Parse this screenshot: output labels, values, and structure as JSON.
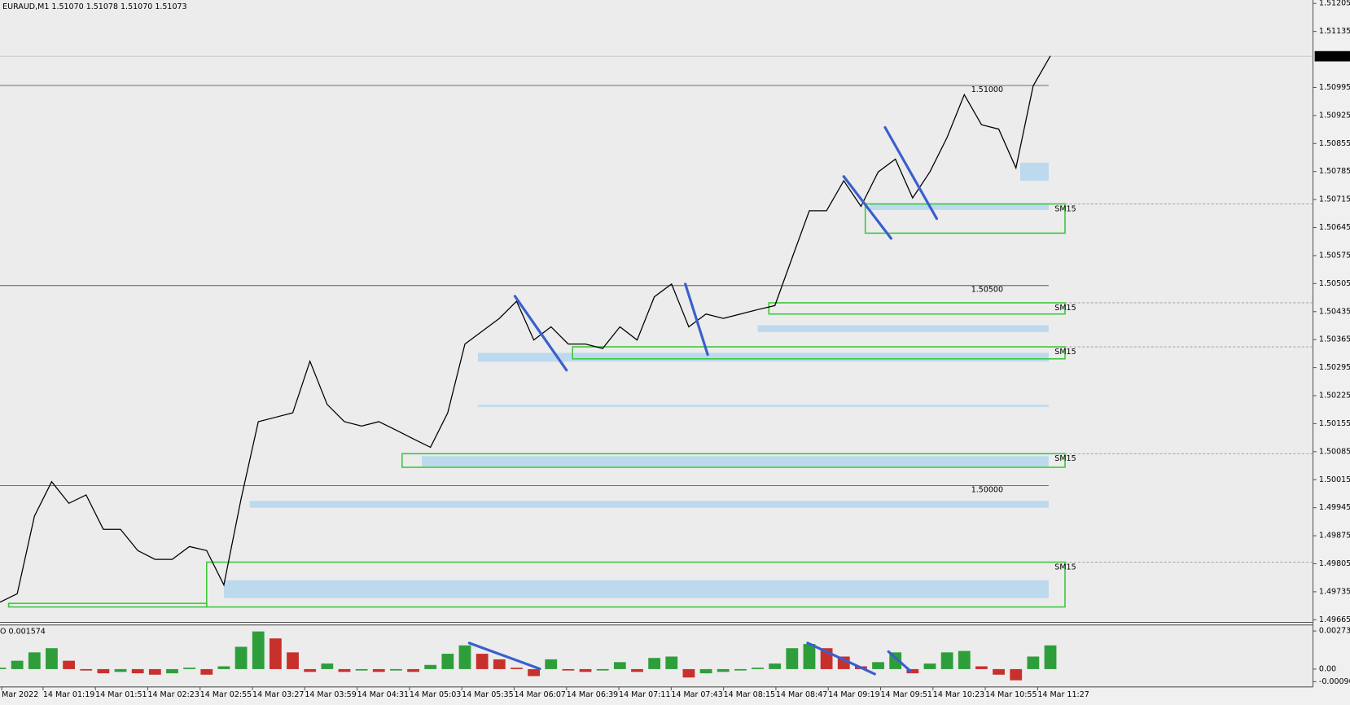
{
  "chart_data": {
    "type": "line",
    "title": "EURAUD,M1  1.51070 1.51078 1.51070 1.51073",
    "ylim": [
      1.49665,
      1.51205
    ],
    "yticks": [
      1.51205,
      1.51135,
      1.50995,
      1.50925,
      1.50855,
      1.50785,
      1.50715,
      1.50645,
      1.50575,
      1.50505,
      1.50435,
      1.50365,
      1.50295,
      1.50225,
      1.50155,
      1.50085,
      1.50015,
      1.49945,
      1.49875,
      1.49805,
      1.49735,
      1.49665
    ],
    "current_price": 1.51073,
    "time_labels": [
      "Mar 2022",
      "14 Mar 01:19",
      "14 Mar 01:51",
      "14 Mar 02:23",
      "14 Mar 02:55",
      "14 Mar 03:27",
      "14 Mar 03:59",
      "14 Mar 04:31",
      "14 Mar 05:03",
      "14 Mar 05:35",
      "14 Mar 06:07",
      "14 Mar 06:39",
      "14 Mar 07:11",
      "14 Mar 07:43",
      "14 Mar 08:15",
      "14 Mar 08:47",
      "14 Mar 09:19",
      "14 Mar 09:51",
      "14 Mar 10:23",
      "14 Mar 10:55",
      "14 Mar 11:27"
    ],
    "price": {
      "color": "#000000",
      "values": [
        1.49709,
        1.4973,
        1.49924,
        1.5001,
        1.49956,
        1.49977,
        1.49891,
        1.49891,
        1.49838,
        1.49816,
        1.49816,
        1.49848,
        1.49838,
        1.49752,
        1.49967,
        1.5016,
        1.50171,
        1.50182,
        1.50311,
        1.50203,
        1.5016,
        1.50149,
        1.5016,
        1.50139,
        1.50117,
        1.50096,
        1.50182,
        1.50354,
        1.50386,
        1.50418,
        1.50461,
        1.50364,
        1.50397,
        1.50354,
        1.50354,
        1.50343,
        1.50397,
        1.50364,
        1.50472,
        1.50504,
        1.50397,
        1.50429,
        1.50418,
        1.50429,
        1.5044,
        1.5045,
        1.50569,
        1.50687,
        1.50687,
        1.50762,
        1.50698,
        1.50784,
        1.50816,
        1.50719,
        1.50784,
        1.5087,
        1.50977,
        1.50902,
        1.50891,
        1.50794,
        1.50999,
        1.51074
      ]
    },
    "levels": [
      {
        "value": 1.51,
        "label": "1.51000"
      },
      {
        "value": 1.505,
        "label": "1.50500"
      },
      {
        "value": 1.5,
        "label": "1.50000"
      }
    ],
    "boxes": [
      {
        "label": "SM15",
        "top": 1.50704,
        "bottom": 1.50631
      },
      {
        "label": "SM15",
        "top": 1.50457,
        "bottom": 1.50429
      },
      {
        "label": "SM15",
        "top": 1.50347,
        "bottom": 1.50317
      },
      {
        "label": "SM15",
        "top": 1.5008,
        "bottom": 1.50046
      },
      {
        "label": "SM15",
        "top": 1.49809,
        "bottom": 1.49697
      },
      {
        "top": 1.49706,
        "bottom": 1.49697
      }
    ],
    "box_color": "#3cc83c",
    "zones": [
      {
        "top": 1.50807,
        "bottom": 1.50762
      },
      {
        "top": 1.50706,
        "bottom": 1.50689
      },
      {
        "top": 1.50401,
        "bottom": 1.50384
      },
      {
        "top": 1.50332,
        "bottom": 1.5031
      },
      {
        "top": 1.50202,
        "bottom": 1.50197
      },
      {
        "top": 1.50074,
        "bottom": 1.50048
      },
      {
        "top": 1.49962,
        "bottom": 1.49945
      },
      {
        "top": 1.49764,
        "bottom": 1.49719
      }
    ],
    "zone_color": "#bcd9ee",
    "oscillator": {
      "label": "O 0.001574",
      "ylim": [
        -0.000906,
        0.002733
      ],
      "yticks": [
        0.002733,
        {
          "value": 0,
          "label": "0.00"
        },
        -0.000906
      ],
      "up_color": "#2e9e3a",
      "down_color": "#c8302c",
      "values": [
        0.0001,
        0.0006,
        0.0012,
        0.0015,
        0.0006,
        -0.0001,
        -0.0003,
        -0.0002,
        -0.0003,
        -0.0004,
        -0.0003,
        0.0001,
        -0.0004,
        0.0002,
        0.0016,
        0.0027,
        0.0022,
        0.0012,
        -0.0002,
        0.0004,
        -0.0002,
        -0.0001,
        -0.0002,
        -0.0001,
        -0.0002,
        0.0003,
        0.0011,
        0.0017,
        0.0011,
        0.0007,
        0.0001,
        -0.0005,
        0.0007,
        -0.0001,
        -0.0002,
        -0.0001,
        0.0005,
        -0.0002,
        0.0008,
        0.0009,
        -0.0006,
        -0.0003,
        -0.0002,
        -0.0001,
        0.0001,
        0.0004,
        0.0015,
        0.0018,
        0.0015,
        0.0009,
        0.0002,
        0.0005,
        0.0012,
        -0.0003,
        0.0004,
        0.0012,
        0.0013,
        0.0002,
        -0.0004,
        -0.0008,
        0.0009,
        0.0017
      ]
    }
  }
}
